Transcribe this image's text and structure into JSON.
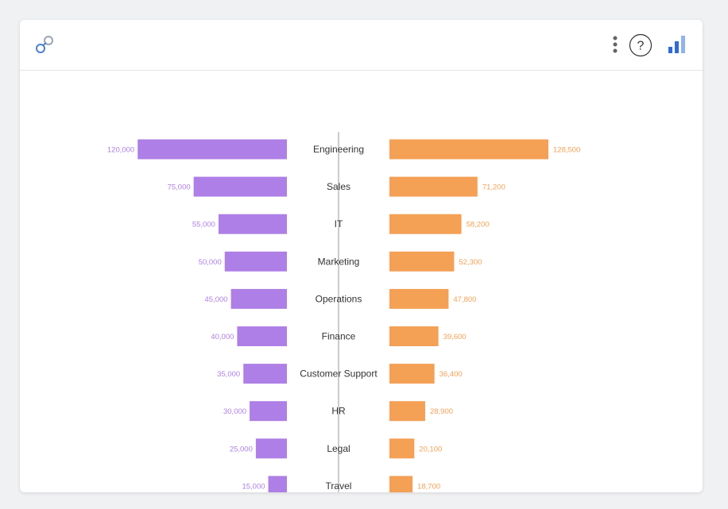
{
  "header": {
    "icons": [
      "relationship-icon",
      "more-options-icon",
      "help-icon",
      "bar-chart-icon"
    ],
    "help_glyph": "?"
  },
  "chart_data": {
    "type": "bar",
    "layout": "diverging (back-to-back horizontal bars)",
    "categories": [
      "Engineering",
      "Sales",
      "IT",
      "Marketing",
      "Operations",
      "Finance",
      "Customer Support",
      "HR",
      "Legal",
      "Travel"
    ],
    "series": [
      {
        "side": "left",
        "color": "#ae7fe6",
        "values": [
          120000,
          75000,
          55000,
          50000,
          45000,
          40000,
          35000,
          30000,
          25000,
          15000
        ],
        "labels": [
          "120,000",
          "75,000",
          "55,000",
          "50,000",
          "45,000",
          "40,000",
          "35,000",
          "30,000",
          "25,000",
          "15,000"
        ]
      },
      {
        "side": "right",
        "color": "#f4a055",
        "values": [
          128500,
          71200,
          58200,
          52300,
          47800,
          39600,
          36400,
          28900,
          20100,
          18700
        ],
        "labels": [
          "128,500",
          "71,200",
          "58,200",
          "52,300",
          "47,800",
          "39,600",
          "36,400",
          "28,900",
          "20,100",
          "18,700"
        ]
      }
    ],
    "title": "",
    "xlabel": "",
    "ylabel": "",
    "grid": false,
    "legend": "none"
  }
}
